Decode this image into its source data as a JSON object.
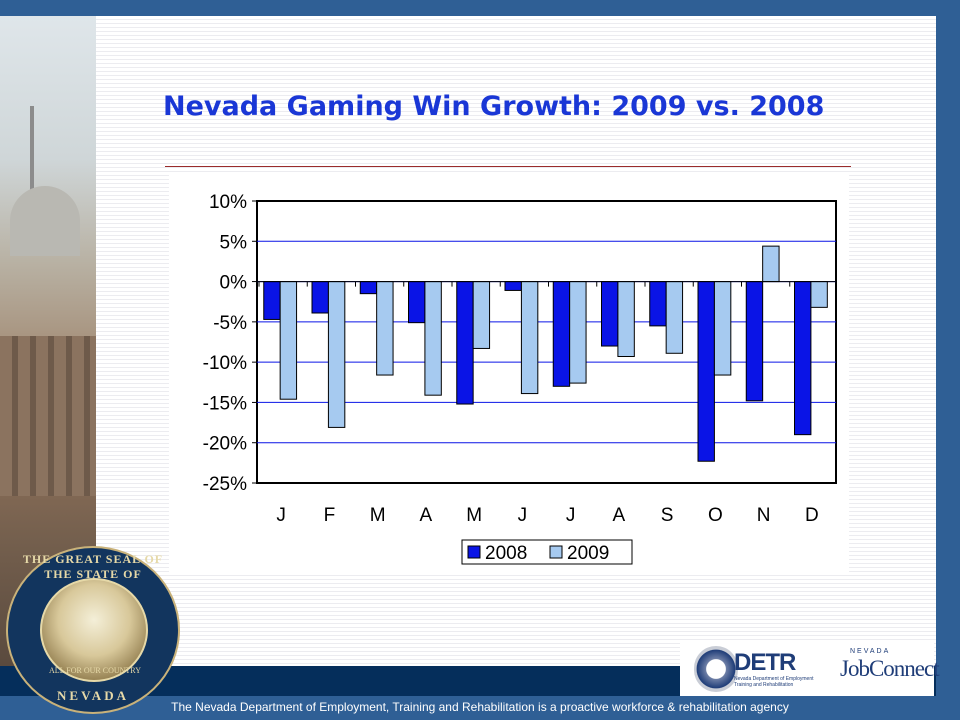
{
  "slide": {
    "title": "Nevada Gaming Win Growth:  2009 vs. 2008",
    "footer": "The Nevada Department of Employment, Training and Rehabilitation is a proactive workforce & rehabilitation agency"
  },
  "seal": {
    "text_top": "THE GREAT SEAL OF THE STATE OF",
    "text_bottom": "NEVADA",
    "motto": "ALL FOR OUR COUNTRY"
  },
  "logos": {
    "detr_name": "DETR",
    "detr_subtitle": "Nevada Department of Employment Training and Rehabilitation",
    "jobconnect_state": "NEVADA",
    "jobconnect_name": "JobConnect"
  },
  "colors": {
    "series_2008": "#0a14e6",
    "series_2009": "#a6caf0",
    "title": "#1a37d6",
    "brand_blue": "#2f5f95"
  },
  "chart_data": {
    "type": "bar",
    "categories": [
      "J",
      "F",
      "M",
      "A",
      "M",
      "J",
      "J",
      "A",
      "S",
      "O",
      "N",
      "D"
    ],
    "series": [
      {
        "name": "2008",
        "values": [
          -4.7,
          -3.9,
          -1.5,
          -5.1,
          -15.2,
          -1.1,
          -13.0,
          -8.0,
          -5.5,
          -22.3,
          -14.8,
          -19.0
        ]
      },
      {
        "name": "2009",
        "values": [
          -14.6,
          -18.1,
          -11.6,
          -14.1,
          -8.3,
          -13.9,
          -12.6,
          -9.3,
          -8.9,
          -11.6,
          4.4,
          -3.2
        ]
      }
    ],
    "y_ticks": [
      10,
      5,
      0,
      -5,
      -10,
      -15,
      -20,
      -25
    ],
    "y_tick_labels": [
      "10%",
      "5%",
      "0%",
      "-5%",
      "-10%",
      "-15%",
      "-20%",
      "-25%"
    ],
    "ylim": [
      -25,
      10
    ],
    "grid": true,
    "legend": "bottom-center"
  }
}
